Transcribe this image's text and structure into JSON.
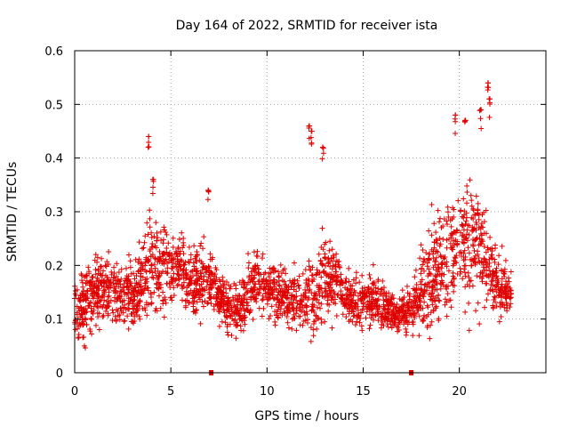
{
  "chart_data": {
    "type": "scatter",
    "title": "Day 164 of 2022, SRMTID for receiver ista",
    "xlabel": "GPS time / hours",
    "ylabel": "SRMTID / TECUs",
    "xlim": [
      0,
      24.5
    ],
    "ylim": [
      0,
      0.6
    ],
    "x_ticks": [
      0,
      5,
      10,
      15,
      20
    ],
    "y_ticks": [
      0,
      0.1,
      0.2,
      0.3,
      0.4,
      0.5,
      0.6
    ],
    "x_tick_labels": [
      "0",
      "5",
      "10",
      "15",
      "20"
    ],
    "y_tick_labels": [
      "0",
      "0.1",
      "0.2",
      "0.3",
      "0.4",
      "0.5",
      "0.6"
    ],
    "grid": true,
    "marker": "plus",
    "color": "#e00000",
    "series": [
      {
        "name": "SRMTID",
        "profile_hours": [
          0,
          0.5,
          1,
          1.5,
          2,
          2.5,
          3,
          3.5,
          4,
          4.5,
          5,
          5.5,
          6,
          6.5,
          7,
          7.5,
          8,
          8.5,
          9,
          9.5,
          10,
          10.5,
          11,
          11.5,
          12,
          12.5,
          13,
          13.5,
          14,
          14.5,
          15,
          15.5,
          16,
          16.5,
          17,
          17.5,
          18,
          18.5,
          19,
          19.5,
          20,
          20.5,
          21,
          21.5,
          22,
          22.5
        ],
        "profile_median": [
          0.12,
          0.12,
          0.15,
          0.16,
          0.15,
          0.14,
          0.14,
          0.17,
          0.2,
          0.2,
          0.2,
          0.2,
          0.16,
          0.17,
          0.17,
          0.15,
          0.12,
          0.12,
          0.15,
          0.17,
          0.16,
          0.15,
          0.14,
          0.13,
          0.13,
          0.15,
          0.18,
          0.18,
          0.15,
          0.13,
          0.14,
          0.14,
          0.12,
          0.11,
          0.11,
          0.12,
          0.15,
          0.17,
          0.19,
          0.22,
          0.24,
          0.25,
          0.25,
          0.2,
          0.17,
          0.15
        ],
        "profile_spread": [
          0.04,
          0.06,
          0.06,
          0.05,
          0.05,
          0.05,
          0.05,
          0.07,
          0.08,
          0.07,
          0.06,
          0.05,
          0.05,
          0.06,
          0.05,
          0.04,
          0.04,
          0.04,
          0.05,
          0.05,
          0.05,
          0.05,
          0.04,
          0.04,
          0.05,
          0.07,
          0.07,
          0.05,
          0.04,
          0.04,
          0.04,
          0.04,
          0.04,
          0.03,
          0.03,
          0.04,
          0.06,
          0.07,
          0.09,
          0.09,
          0.09,
          0.1,
          0.1,
          0.07,
          0.05,
          0.04
        ],
        "peaks": [
          {
            "x": 3.85,
            "y": 0.44
          },
          {
            "x": 4.1,
            "y": 0.36
          },
          {
            "x": 6.95,
            "y": 0.34
          },
          {
            "x": 12.2,
            "y": 0.46
          },
          {
            "x": 12.3,
            "y": 0.45
          },
          {
            "x": 12.9,
            "y": 0.42
          },
          {
            "x": 19.8,
            "y": 0.48
          },
          {
            "x": 20.3,
            "y": 0.47
          },
          {
            "x": 21.1,
            "y": 0.49
          },
          {
            "x": 21.5,
            "y": 0.54
          },
          {
            "x": 21.55,
            "y": 0.51
          }
        ],
        "n_points": 2600,
        "x_range": [
          0,
          22.7
        ]
      }
    ],
    "axis_markers_x": [
      7.1,
      17.5
    ]
  }
}
